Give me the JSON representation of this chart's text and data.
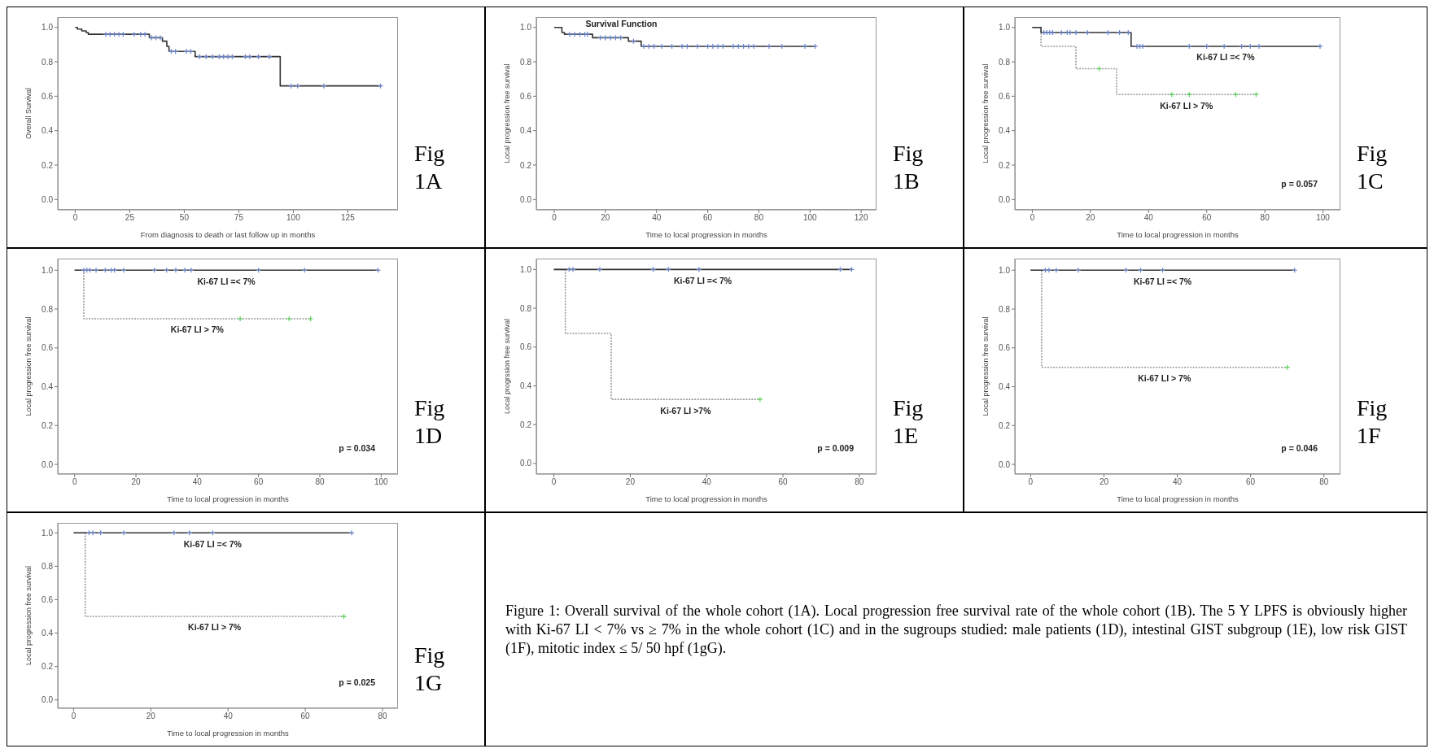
{
  "chart_data": [
    {
      "type": "step",
      "ylabel": "Overall Survival",
      "xlabel": "From diagnosis to death or last follow up in months",
      "xlim": [
        -8,
        148
      ],
      "ylim": [
        -0.06,
        1.06
      ],
      "xticks": [
        0,
        25,
        50,
        75,
        100,
        125
      ],
      "yticks": [
        {
          "value": 0,
          "label": "0.0"
        },
        {
          "value": 0.2,
          "label": "0.2"
        },
        {
          "value": 0.4,
          "label": "0.4"
        },
        {
          "value": 0.6,
          "label": "0.6"
        },
        {
          "value": 0.8,
          "label": "0.8"
        },
        {
          "value": 1,
          "label": "1.0"
        }
      ],
      "series": [
        {
          "type": "step",
          "color": "#333333",
          "line_style": "solid",
          "x": [
            0,
            1,
            3,
            5,
            6,
            34,
            40,
            42,
            43,
            55,
            94,
            140
          ],
          "values": [
            1,
            0.99,
            0.98,
            0.97,
            0.96,
            0.94,
            0.92,
            0.89,
            0.86,
            0.83,
            0.66,
            0.66
          ]
        },
        {
          "type": "scatter",
          "color": "#6a84c9",
          "marker": "cross",
          "x": [
            14,
            16,
            18,
            20,
            22,
            27,
            30,
            32,
            35,
            37,
            39,
            44,
            46,
            51,
            53,
            57,
            60,
            63,
            66,
            68,
            70,
            72,
            78,
            80,
            84,
            89,
            99,
            102,
            114,
            140
          ],
          "values": [
            0.96,
            0.96,
            0.96,
            0.96,
            0.96,
            0.96,
            0.96,
            0.96,
            0.94,
            0.94,
            0.94,
            0.86,
            0.86,
            0.86,
            0.86,
            0.83,
            0.83,
            0.83,
            0.83,
            0.83,
            0.83,
            0.83,
            0.83,
            0.83,
            0.83,
            0.83,
            0.66,
            0.66,
            0.66,
            0.66
          ]
        }
      ],
      "annotations": [
        "Fig 1A"
      ]
    },
    {
      "type": "step",
      "title": "Survival Function",
      "ylabel": "Local progression free survival",
      "xlabel": "Time to local progression in months",
      "xlim": [
        -7,
        126
      ],
      "ylim": [
        -0.06,
        1.06
      ],
      "xticks": [
        0,
        20,
        40,
        60,
        80,
        100,
        120
      ],
      "yticks": [
        {
          "value": 0,
          "label": "0.0"
        },
        {
          "value": 0.2,
          "label": "0.2"
        },
        {
          "value": 0.4,
          "label": "0.4"
        },
        {
          "value": 0.6,
          "label": "0.6"
        },
        {
          "value": 0.8,
          "label": "0.8"
        },
        {
          "value": 1,
          "label": "1.0"
        }
      ],
      "series": [
        {
          "type": "step",
          "color": "#333333",
          "line_style": "solid",
          "x": [
            0,
            3,
            4,
            15,
            29,
            34,
            102
          ],
          "values": [
            1,
            0.97,
            0.96,
            0.94,
            0.92,
            0.89,
            0.89
          ]
        },
        {
          "type": "scatter",
          "color": "#6a84c9",
          "marker": "cross",
          "x": [
            6,
            8,
            10,
            12,
            13,
            18,
            20,
            22,
            24,
            26,
            31,
            35,
            37,
            39,
            42,
            46,
            50,
            52,
            56,
            60,
            62,
            64,
            66,
            70,
            72,
            74,
            76,
            78,
            84,
            89,
            98,
            102
          ],
          "values": [
            0.96,
            0.96,
            0.96,
            0.96,
            0.96,
            0.94,
            0.94,
            0.94,
            0.94,
            0.94,
            0.92,
            0.89,
            0.89,
            0.89,
            0.89,
            0.89,
            0.89,
            0.89,
            0.89,
            0.89,
            0.89,
            0.89,
            0.89,
            0.89,
            0.89,
            0.89,
            0.89,
            0.89,
            0.89,
            0.89,
            0.89,
            0.89
          ]
        }
      ],
      "annotations": [
        "Fig 1B"
      ]
    },
    {
      "type": "step",
      "ylabel": "Local progression free survival",
      "xlabel": "Time to local progression in months",
      "xlim": [
        -6,
        106
      ],
      "ylim": [
        -0.06,
        1.06
      ],
      "xticks": [
        0,
        20,
        40,
        60,
        80,
        100
      ],
      "yticks": [
        {
          "value": 0,
          "label": "0.0"
        },
        {
          "value": 0.2,
          "label": "0.2"
        },
        {
          "value": 0.4,
          "label": "0.4"
        },
        {
          "value": 0.6,
          "label": "0.6"
        },
        {
          "value": 0.8,
          "label": "0.8"
        },
        {
          "value": 1,
          "label": "1.0"
        }
      ],
      "series": [
        {
          "type": "step",
          "name": "Ki-67 LI > 7%",
          "color": "#999999",
          "line_style": "dotted",
          "x": [
            0,
            3,
            15,
            29,
            77
          ],
          "values": [
            1,
            0.89,
            0.76,
            0.61,
            0.61
          ]
        },
        {
          "type": "step",
          "name": "Ki-67 LI =< 7%",
          "color": "#333333",
          "line_style": "solid",
          "x": [
            0,
            3,
            34,
            99
          ],
          "values": [
            1,
            0.97,
            0.89,
            0.89
          ]
        },
        {
          "type": "scatter",
          "color": "#6a84c9",
          "marker": "cross",
          "x": [
            4,
            5,
            6,
            7,
            10,
            12,
            13,
            15,
            19,
            26,
            30,
            33,
            36,
            37,
            38,
            54,
            60,
            66,
            72,
            75,
            78,
            99
          ],
          "values": [
            0.97,
            0.97,
            0.97,
            0.97,
            0.97,
            0.97,
            0.97,
            0.97,
            0.97,
            0.97,
            0.97,
            0.97,
            0.89,
            0.89,
            0.89,
            0.89,
            0.89,
            0.89,
            0.89,
            0.89,
            0.89,
            0.89
          ]
        },
        {
          "type": "scatter",
          "color": "#5ccf5c",
          "marker": "cross",
          "x": [
            23,
            48,
            54,
            70,
            77
          ],
          "values": [
            0.76,
            0.61,
            0.61,
            0.61,
            0.61
          ]
        }
      ],
      "annotations": [
        "p = 0.057",
        "Fig 1C"
      ]
    },
    {
      "type": "step",
      "ylabel": "Local progression free survival",
      "xlabel": "Time to local progression in months",
      "xlim": [
        -5.5,
        105.5
      ],
      "ylim": [
        -0.05,
        1.06
      ],
      "xticks": [
        0,
        20,
        40,
        60,
        80,
        100
      ],
      "yticks": [
        {
          "value": 0,
          "label": "0.0"
        },
        {
          "value": 0.2,
          "label": "0.2"
        },
        {
          "value": 0.4,
          "label": "0.4"
        },
        {
          "value": 0.6,
          "label": "0.6"
        },
        {
          "value": 0.8,
          "label": "0.8"
        },
        {
          "value": 1,
          "label": "1.0"
        }
      ],
      "series": [
        {
          "type": "step",
          "name": "Ki-67 LI > 7%",
          "color": "#999999",
          "line_style": "dotted",
          "x": [
            0,
            3,
            77
          ],
          "values": [
            1,
            0.75,
            0.75
          ]
        },
        {
          "type": "step",
          "name": "Ki-67 LI =< 7%",
          "color": "#333333",
          "line_style": "solid",
          "x": [
            0,
            99
          ],
          "values": [
            1,
            1
          ]
        },
        {
          "type": "scatter",
          "color": "#6a84c9",
          "marker": "cross",
          "x": [
            3,
            4,
            5,
            7,
            10,
            12,
            13,
            16,
            26,
            30,
            33,
            36,
            38,
            60,
            75,
            99
          ],
          "values": [
            1,
            1,
            1,
            1,
            1,
            1,
            1,
            1,
            1,
            1,
            1,
            1,
            1,
            1,
            1,
            1
          ]
        },
        {
          "type": "scatter",
          "color": "#5ccf5c",
          "marker": "cross",
          "x": [
            54,
            70,
            77
          ],
          "values": [
            0.75,
            0.75,
            0.75
          ]
        }
      ],
      "annotations": [
        "p = 0.034",
        "Fig 1D"
      ]
    },
    {
      "type": "step",
      "ylabel": "Local progrssion free survival",
      "xlabel": "Time to local progression in months",
      "xlim": [
        -4.6,
        84.5
      ],
      "ylim": [
        -0.055,
        1.056
      ],
      "xticks": [
        0,
        20,
        40,
        60,
        80
      ],
      "yticks": [
        {
          "value": 0,
          "label": "0.0"
        },
        {
          "value": 0.2,
          "label": "0.2"
        },
        {
          "value": 0.4,
          "label": "0.4"
        },
        {
          "value": 0.6,
          "label": "0.6"
        },
        {
          "value": 0.8,
          "label": "0.8"
        },
        {
          "value": 1,
          "label": "1.0"
        }
      ],
      "series": [
        {
          "type": "step",
          "name": "Ki-67 LI >7%",
          "color": "#999999",
          "line_style": "dotted",
          "x": [
            0,
            3,
            15,
            54
          ],
          "values": [
            1,
            0.67,
            0.33,
            0.33
          ]
        },
        {
          "type": "step",
          "name": "Ki-67 LI =< 7%",
          "color": "#333333",
          "line_style": "solid",
          "x": [
            0,
            78
          ],
          "values": [
            1,
            1
          ]
        },
        {
          "type": "scatter",
          "color": "#6a84c9",
          "marker": "cross",
          "x": [
            4,
            5,
            12,
            26,
            30,
            38,
            75,
            78
          ],
          "values": [
            1,
            1,
            1,
            1,
            1,
            1,
            1,
            1
          ]
        },
        {
          "type": "scatter",
          "color": "#5ccf5c",
          "marker": "cross",
          "x": [
            54
          ],
          "values": [
            0.33
          ]
        }
      ],
      "annotations": [
        "p = 0.009",
        "Fig 1E"
      ]
    },
    {
      "type": "step",
      "ylabel": "Local progression free survival",
      "xlabel": "Time to local progression in months",
      "xlim": [
        -4.3,
        84.5
      ],
      "ylim": [
        -0.05,
        1.06
      ],
      "xticks": [
        0,
        20,
        40,
        60,
        80
      ],
      "yticks": [
        {
          "value": 0,
          "label": "0.0"
        },
        {
          "value": 0.2,
          "label": "0.2"
        },
        {
          "value": 0.4,
          "label": "0.4"
        },
        {
          "value": 0.6,
          "label": "0.6"
        },
        {
          "value": 0.8,
          "label": "0.8"
        },
        {
          "value": 1,
          "label": "1.0"
        }
      ],
      "series": [
        {
          "type": "step",
          "name": "Ki-67 LI > 7%",
          "color": "#999999",
          "line_style": "dotted",
          "x": [
            0,
            3,
            70
          ],
          "values": [
            1,
            0.5,
            0.5
          ]
        },
        {
          "type": "step",
          "name": "Ki-67 LI =< 7%",
          "color": "#333333",
          "line_style": "solid",
          "x": [
            0,
            72
          ],
          "values": [
            1,
            1
          ]
        },
        {
          "type": "scatter",
          "color": "#6a84c9",
          "marker": "cross",
          "x": [
            4,
            5,
            7,
            13,
            26,
            30,
            36,
            72
          ],
          "values": [
            1,
            1,
            1,
            1,
            1,
            1,
            1,
            1
          ]
        },
        {
          "type": "scatter",
          "color": "#5ccf5c",
          "marker": "cross",
          "x": [
            70
          ],
          "values": [
            0.5
          ]
        }
      ],
      "annotations": [
        "p = 0.046",
        "Fig 1F"
      ]
    },
    {
      "type": "step",
      "ylabel": "Local progression free survival",
      "xlabel": "Time to local progression in months",
      "xlim": [
        -4.1,
        84
      ],
      "ylim": [
        -0.05,
        1.06
      ],
      "xticks": [
        0,
        20,
        40,
        60,
        80
      ],
      "yticks": [
        {
          "value": 0,
          "label": "0.0"
        },
        {
          "value": 0.2,
          "label": "0.2"
        },
        {
          "value": 0.4,
          "label": "0.4"
        },
        {
          "value": 0.6,
          "label": "0.6"
        },
        {
          "value": 0.8,
          "label": "0.8"
        },
        {
          "value": 1,
          "label": "1.0"
        }
      ],
      "series": [
        {
          "type": "step",
          "name": "Ki-67 LI > 7%",
          "color": "#999999",
          "line_style": "dotted",
          "x": [
            0,
            3,
            70
          ],
          "values": [
            1,
            0.5,
            0.5
          ]
        },
        {
          "type": "step",
          "name": "Ki-67 LI =< 7%",
          "color": "#333333",
          "line_style": "solid",
          "x": [
            0,
            72
          ],
          "values": [
            1,
            1
          ]
        },
        {
          "type": "scatter",
          "color": "#6a84c9",
          "marker": "cross",
          "x": [
            4,
            5,
            7,
            13,
            26,
            30,
            36,
            72
          ],
          "values": [
            1,
            1,
            1,
            1,
            1,
            1,
            1,
            1
          ]
        },
        {
          "type": "scatter",
          "color": "#5ccf5c",
          "marker": "cross",
          "x": [
            70
          ],
          "values": [
            0.5
          ]
        }
      ],
      "annotations": [
        "p = 0.025",
        "Fig 1G"
      ]
    },
    {
      "type": "other",
      "annotations": [
        "Figure 1: Overall survival of the whole cohort (1A). Local progression free survival rate of the whole cohort (1B). The 5 Y LPFS is obviously higher with Ki-67 LI < 7% vs ≥ 7% in the whole cohort (1C) and in the sugroups studied: male patients (1D), intestinal GIST subgroup (1E), low risk GIST (1F), mitotic index ≤ 5/ 50 hpf (1gG)."
      ]
    }
  ]
}
